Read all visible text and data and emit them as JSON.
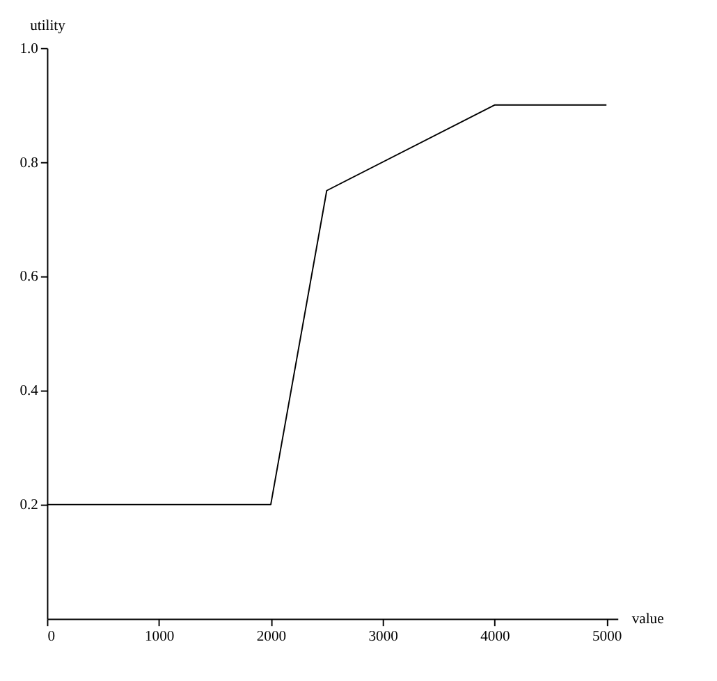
{
  "chart_data": {
    "type": "line",
    "xlabel": "value",
    "ylabel": "utility",
    "x": [
      0,
      2000,
      2500,
      4000,
      5000
    ],
    "series": [
      {
        "color": "#000000",
        "values": [
          0.2,
          0.2,
          0.75,
          0.9,
          0.9
        ]
      }
    ],
    "xlim": [
      0,
      5100
    ],
    "ylim": [
      0,
      1.0
    ],
    "xticks": [
      0,
      1000,
      2000,
      3000,
      4000,
      5000
    ],
    "yticks": [
      0.2,
      0.4,
      0.6,
      0.8,
      {
        "value": 1.0,
        "label": "1.0"
      }
    ],
    "grid": false,
    "marker": "none",
    "line_style": "solid"
  }
}
